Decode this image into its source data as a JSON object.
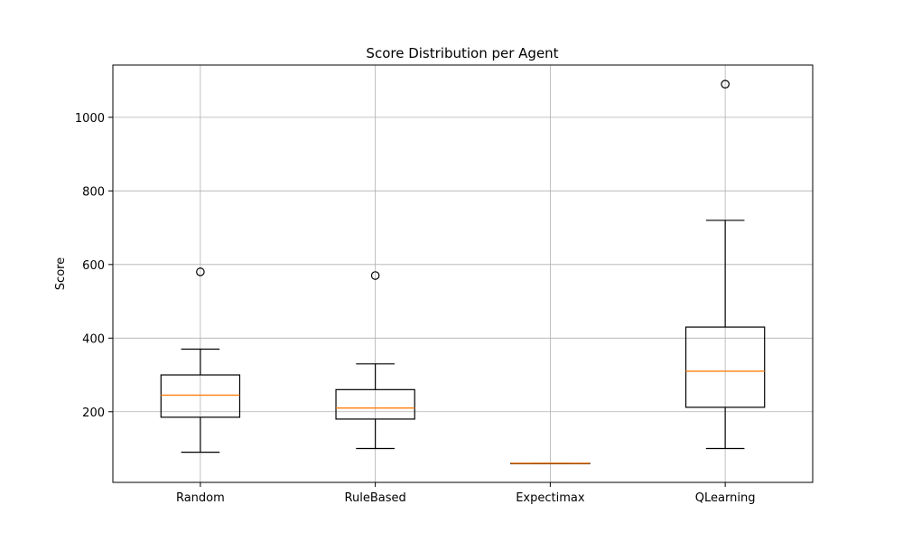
{
  "chart_data": {
    "type": "boxplot",
    "title": "Score Distribution per Agent",
    "xlabel": "",
    "ylabel": "Score",
    "categories": [
      "Random",
      "RuleBased",
      "Expectimax",
      "QLearning"
    ],
    "boxes": [
      {
        "category": "Random",
        "whisker_low": 90,
        "q1": 185,
        "median": 245,
        "q3": 300,
        "whisker_high": 370,
        "outliers": [
          580
        ]
      },
      {
        "category": "RuleBased",
        "whisker_low": 100,
        "q1": 180,
        "median": 210,
        "q3": 260,
        "whisker_high": 330,
        "outliers": [
          570
        ]
      },
      {
        "category": "Expectimax",
        "whisker_low": 60,
        "q1": 60,
        "median": 60,
        "q3": 60,
        "whisker_high": 60,
        "outliers": []
      },
      {
        "category": "QLearning",
        "whisker_low": 100,
        "q1": 212,
        "median": 310,
        "q3": 430,
        "whisker_high": 720,
        "outliers": [
          1090
        ]
      }
    ],
    "yticks": [
      200,
      400,
      600,
      800,
      1000
    ],
    "ylim": [
      8,
      1142
    ],
    "grid": true,
    "colors": {
      "box": "#000000",
      "median": "#ff7f0e",
      "grid": "#b0b0b0"
    }
  }
}
